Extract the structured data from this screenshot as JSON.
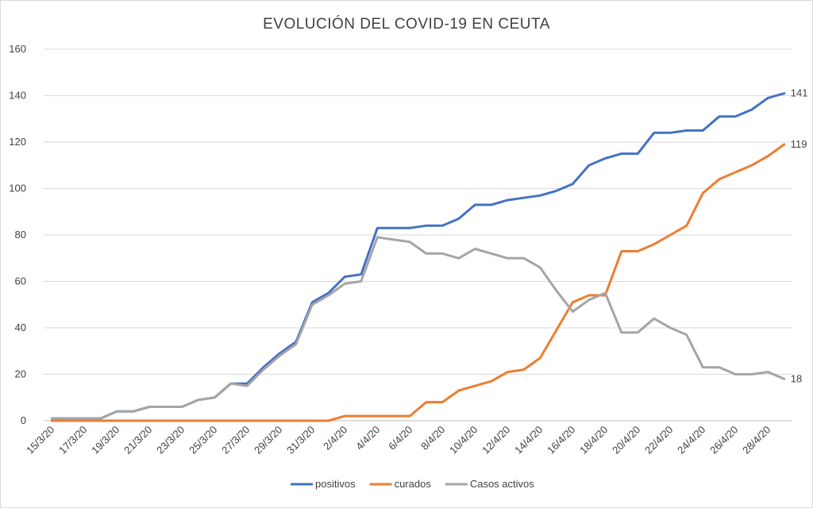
{
  "chart_data": {
    "type": "line",
    "title": "EVOLUCIÓN DEL COVID-19 EN CEUTA",
    "xlabel": "",
    "ylabel": "",
    "ylim": [
      0,
      160
    ],
    "yticks": [
      0,
      20,
      40,
      60,
      80,
      100,
      120,
      140,
      160
    ],
    "grid": true,
    "legend_position": "bottom",
    "x": [
      "15/3/20",
      "16/3/20",
      "17/3/20",
      "18/3/20",
      "19/3/20",
      "20/3/20",
      "21/3/20",
      "22/3/20",
      "23/3/20",
      "24/3/20",
      "25/3/20",
      "26/3/20",
      "27/3/20",
      "28/3/20",
      "29/3/20",
      "30/3/20",
      "31/3/20",
      "1/4/20",
      "2/4/20",
      "3/4/20",
      "4/4/20",
      "5/4/20",
      "6/4/20",
      "7/4/20",
      "8/4/20",
      "9/4/20",
      "10/4/20",
      "11/4/20",
      "12/4/20",
      "13/4/20",
      "14/4/20",
      "15/4/20",
      "16/4/20",
      "17/4/20",
      "18/4/20",
      "19/4/20",
      "20/4/20",
      "21/4/20",
      "22/4/20",
      "23/4/20",
      "24/4/20",
      "25/4/20",
      "26/4/20",
      "27/4/20",
      "28/4/20",
      "29/4/20"
    ],
    "xtick_labels": [
      "15/3/20",
      "17/3/20",
      "19/3/20",
      "21/3/20",
      "23/3/20",
      "25/3/20",
      "27/3/20",
      "29/3/20",
      "31/3/20",
      "2/4/20",
      "4/4/20",
      "6/4/20",
      "8/4/20",
      "10/4/20",
      "12/4/20",
      "14/4/20",
      "16/4/20",
      "18/4/20",
      "20/4/20",
      "22/4/20",
      "24/4/20",
      "26/4/20",
      "28/4/20"
    ],
    "series": [
      {
        "name": "positivos",
        "color": "#4472c4",
        "end_label": "141",
        "values": [
          1,
          1,
          1,
          1,
          4,
          4,
          6,
          6,
          6,
          9,
          10,
          16,
          16,
          23,
          29,
          34,
          51,
          55,
          62,
          63,
          83,
          83,
          83,
          84,
          84,
          87,
          93,
          93,
          95,
          96,
          97,
          99,
          102,
          110,
          113,
          115,
          115,
          124,
          124,
          125,
          125,
          131,
          131,
          134,
          139,
          141
        ]
      },
      {
        "name": "curados",
        "color": "#ed7d31",
        "end_label": "119",
        "values": [
          0,
          0,
          0,
          0,
          0,
          0,
          0,
          0,
          0,
          0,
          0,
          0,
          0,
          0,
          0,
          0,
          0,
          0,
          2,
          2,
          2,
          2,
          2,
          8,
          8,
          13,
          15,
          17,
          21,
          22,
          27,
          39,
          51,
          54,
          54,
          73,
          73,
          76,
          80,
          84,
          98,
          104,
          107,
          110,
          114,
          119
        ]
      },
      {
        "name": "Casos activos",
        "color": "#a5a5a5",
        "end_label": "18",
        "values": [
          1,
          1,
          1,
          1,
          4,
          4,
          6,
          6,
          6,
          9,
          10,
          16,
          15,
          22,
          28,
          33,
          50,
          54,
          59,
          60,
          79,
          78,
          77,
          72,
          72,
          70,
          74,
          72,
          70,
          70,
          66,
          56,
          47,
          52,
          55,
          38,
          38,
          44,
          40,
          37,
          23,
          23,
          20,
          20,
          21,
          18
        ]
      }
    ]
  }
}
